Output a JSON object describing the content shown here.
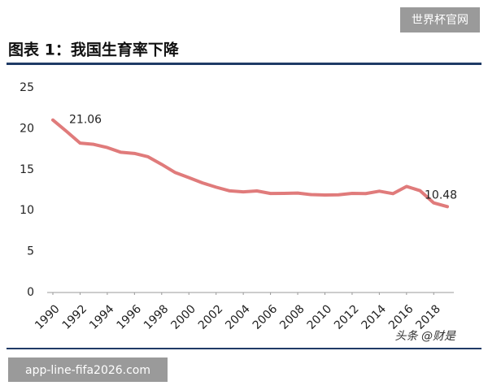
{
  "watermark_top": "世界杯官网",
  "watermark_bottom": "app-line-fifa2026.com",
  "source_tag": "头条 @财是",
  "chart_data": {
    "type": "line",
    "title": "图表 1：我国生育率下降",
    "x": [
      1990,
      1991,
      1992,
      1993,
      1994,
      1995,
      1996,
      1997,
      1998,
      1999,
      2000,
      2001,
      2002,
      2003,
      2004,
      2005,
      2006,
      2007,
      2008,
      2009,
      2010,
      2011,
      2012,
      2013,
      2014,
      2015,
      2016,
      2017,
      2018,
      2019
    ],
    "series": [
      {
        "color": "#e07b7b",
        "values": [
          21.06,
          19.68,
          18.24,
          18.09,
          17.7,
          17.12,
          16.98,
          16.57,
          15.64,
          14.64,
          14.03,
          13.38,
          12.86,
          12.41,
          12.29,
          12.4,
          12.09,
          12.1,
          12.14,
          11.95,
          11.9,
          11.93,
          12.1,
          12.08,
          12.37,
          12.07,
          12.95,
          12.43,
          10.94,
          10.48
        ],
        "value_labels": [
          "21.06",
          null,
          null,
          null,
          null,
          null,
          null,
          null,
          null,
          null,
          null,
          null,
          null,
          null,
          null,
          null,
          null,
          null,
          null,
          null,
          null,
          null,
          null,
          null,
          null,
          null,
          null,
          null,
          null,
          "10.48"
        ]
      }
    ],
    "xlim": [
      1990,
      2019
    ],
    "xticks": [
      1990,
      1992,
      1994,
      1996,
      1998,
      2000,
      2002,
      2004,
      2006,
      2008,
      2010,
      2012,
      2014,
      2016,
      2018
    ],
    "ylim": [
      0,
      25
    ],
    "yticks": [
      0,
      5,
      10,
      15,
      20,
      25
    ],
    "grid": false
  }
}
